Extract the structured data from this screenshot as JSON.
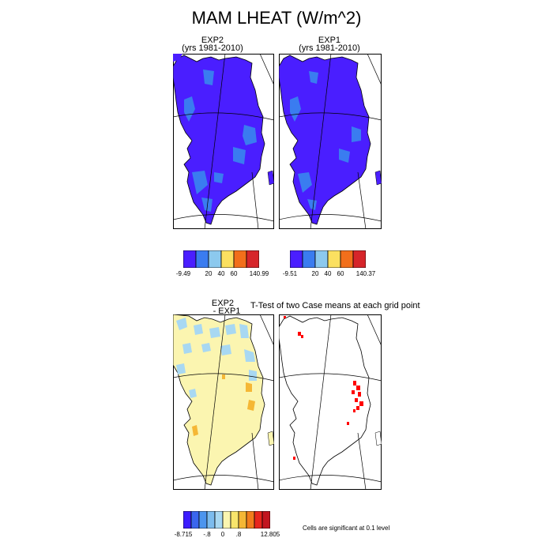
{
  "figure": {
    "title": "MAM LHEAT (W/m^2)"
  },
  "panels": {
    "exp2": {
      "title_line1": "EXP2",
      "title_line2": "(yrs 1981-2010)"
    },
    "exp1": {
      "title_line1": "EXP1",
      "title_line2": "(yrs 1981-2010)"
    },
    "diff": {
      "title_line1": "EXP2",
      "title_line2": "- EXP1"
    },
    "ttest": {
      "title": "T-Test of two Case means at each grid point",
      "note": "Cells are significant at 0.1 level"
    }
  },
  "colorbars": {
    "exp2": {
      "colors": [
        "#4a1eff",
        "#3a7cf0",
        "#8cc9ee",
        "#fbe060",
        "#f26f1b",
        "#d6252a"
      ],
      "labels": [
        "-9.49",
        "20",
        "40",
        "60",
        "140.99"
      ]
    },
    "exp1": {
      "colors": [
        "#4a1eff",
        "#3a7cf0",
        "#8cc9ee",
        "#fbe060",
        "#f26f1b",
        "#d6252a"
      ],
      "labels": [
        "-9.51",
        "20",
        "40",
        "60",
        "140.37"
      ]
    },
    "diff": {
      "colors": [
        "#3c1cff",
        "#3a66ee",
        "#4c95ee",
        "#7cbcee",
        "#a8d8f2",
        "#fbf5b0",
        "#f8e56b",
        "#f5b735",
        "#f27c1c",
        "#e8261d",
        "#c2151f"
      ],
      "labels": [
        "-8.715",
        "-.8",
        "0",
        ".8",
        "12.805"
      ]
    }
  },
  "colors": {
    "land_low": "#4a1eff",
    "land_mid": "#3a7cf0",
    "diff_base": "#fbf5b0",
    "diff_blue": "#a8d8f2",
    "diff_orange": "#f5b735",
    "significant": "#ff0000"
  }
}
